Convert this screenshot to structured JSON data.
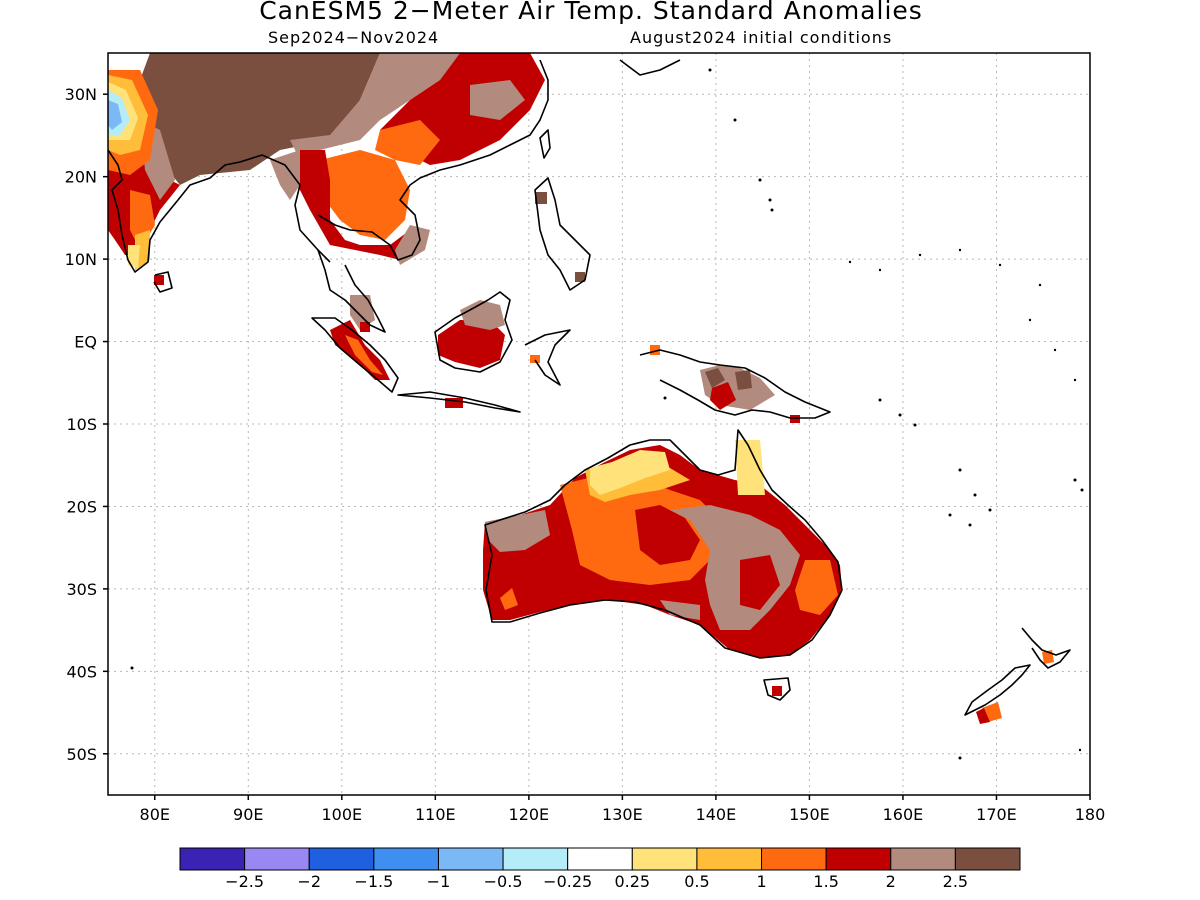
{
  "title": "CanESM5 2−Meter Air Temp. Standard Anomalies",
  "subtitle_period": "Sep2024−Nov2024",
  "subtitle_ic": "August2024 initial conditions",
  "lat_labels": [
    "30N",
    "20N",
    "10N",
    "EQ",
    "10S",
    "20S",
    "30S",
    "40S",
    "50S"
  ],
  "lon_labels": [
    "80E",
    "90E",
    "100E",
    "110E",
    "120E",
    "130E",
    "140E",
    "150E",
    "160E",
    "170E",
    "180"
  ],
  "colorbar": {
    "colors": [
      "#3a22b5",
      "#9a88f2",
      "#1f60e0",
      "#3f8ff0",
      "#7bb8f6",
      "#b4ecf8",
      "#ffffff",
      "#ffe27a",
      "#ffbd3a",
      "#ff6a10",
      "#c00000",
      "#b28a7e",
      "#7a4f40"
    ],
    "labels": [
      "−2.5",
      "−2",
      "−1.5",
      "−1",
      "−0.5",
      "−0.25",
      "0.25",
      "0.5",
      "1",
      "1.5",
      "2",
      "2.5"
    ]
  },
  "colors": {
    "grid": "#b8b8b8",
    "coast": "#000000"
  }
}
